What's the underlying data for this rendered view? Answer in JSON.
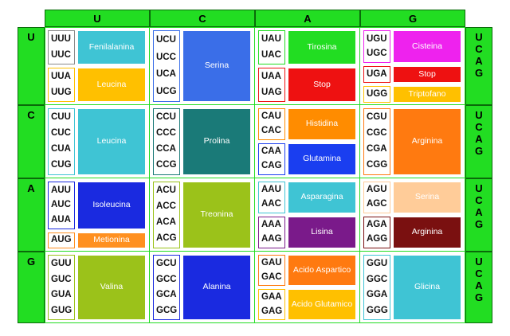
{
  "top_headers": [
    "U",
    "C",
    "A",
    "G"
  ],
  "left_headers": [
    "U",
    "C",
    "A",
    "G"
  ],
  "right_headers": [
    [
      "U",
      "C",
      "A",
      "G"
    ],
    [
      "U",
      "C",
      "A",
      "G"
    ],
    [
      "U",
      "C",
      "A",
      "G"
    ],
    [
      "U",
      "C",
      "A",
      "G"
    ]
  ],
  "cells": [
    [
      {
        "groups": [
          {
            "codons": [
              "UUU",
              "UUC"
            ],
            "aa": "Fenilalanina",
            "color": "#3fc4d4",
            "border": "#8a8a8a"
          },
          {
            "codons": [
              "UUA",
              "UUG"
            ],
            "aa": "Leucina",
            "color": "#ffc000",
            "border": "#ffc000"
          }
        ]
      },
      {
        "groups": [
          {
            "codons": [
              "UCU",
              "UCC",
              "UCA",
              "UCG"
            ],
            "aa": "Serina",
            "color": "#3a6ee8",
            "border": "#3a6ee8"
          }
        ]
      },
      {
        "groups": [
          {
            "codons": [
              "UAU",
              "UAC"
            ],
            "aa": "Tirosina",
            "color": "#22dd22",
            "border": "#22dd22"
          },
          {
            "codons": [
              "UAA",
              "UAG"
            ],
            "aa": "Stop",
            "color": "#ee1111",
            "border": "#ee1111"
          }
        ]
      },
      {
        "groups": [
          {
            "codons": [
              "UGU",
              "UGC"
            ],
            "aa": "Cisteina",
            "color": "#ee22ee",
            "border": "#ee22ee"
          },
          {
            "codons": [
              "UGA"
            ],
            "aa": "Stop",
            "color": "#ee1111",
            "border": "#ee1111"
          },
          {
            "codons": [
              "UGG"
            ],
            "aa": "Triptofano",
            "color": "#ffc000",
            "border": "#ffc000"
          }
        ]
      }
    ],
    [
      {
        "groups": [
          {
            "codons": [
              "CUU",
              "CUC",
              "CUA",
              "CUG"
            ],
            "aa": "Leucina",
            "color": "#3fc4d4",
            "border": "#3fc4d4"
          }
        ]
      },
      {
        "groups": [
          {
            "codons": [
              "CCU",
              "CCC",
              "CCA",
              "CCG"
            ],
            "aa": "Prolina",
            "color": "#1a7a78",
            "border": "#1a7a78"
          }
        ]
      },
      {
        "groups": [
          {
            "codons": [
              "CAU",
              "CAC"
            ],
            "aa": "Histidina",
            "color": "#ff8c00",
            "border": "#ff8c00"
          },
          {
            "codons": [
              "CAA",
              "CAG"
            ],
            "aa": "Glutamina",
            "color": "#1a3ef0",
            "border": "#1a3ef0"
          }
        ]
      },
      {
        "groups": [
          {
            "codons": [
              "CGU",
              "CGC",
              "CGA",
              "CGG"
            ],
            "aa": "Arginina",
            "color": "#ff7a10",
            "border": "#ff7a10"
          }
        ]
      }
    ],
    [
      {
        "groups": [
          {
            "codons": [
              "AUU",
              "AUC",
              "AUA"
            ],
            "aa": "Isoleucina",
            "color": "#1a2ae0",
            "border": "#1a2ae0"
          },
          {
            "codons": [
              "AUG"
            ],
            "aa": "Metionina",
            "color": "#ff9020",
            "border": "#ff9020"
          }
        ]
      },
      {
        "groups": [
          {
            "codons": [
              "ACU",
              "ACC",
              "ACA",
              "ACG"
            ],
            "aa": "Treonina",
            "color": "#9bc21a",
            "border": "#9bc21a"
          }
        ]
      },
      {
        "groups": [
          {
            "codons": [
              "AAU",
              "AAC"
            ],
            "aa": "Asparagina",
            "color": "#3fc4d4",
            "border": "#3fc4d4"
          },
          {
            "codons": [
              "AAA",
              "AAG"
            ],
            "aa": "Lisina",
            "color": "#7a1a8a",
            "border": "#7a1a8a"
          }
        ]
      },
      {
        "groups": [
          {
            "codons": [
              "AGU",
              "AGC"
            ],
            "aa": "Serina",
            "color": "#ffcc99",
            "border": "#ffcc99"
          },
          {
            "codons": [
              "AGA",
              "AGG"
            ],
            "aa": "Arginina",
            "color": "#7a1010",
            "border": "#7a1010"
          }
        ]
      }
    ],
    [
      {
        "groups": [
          {
            "codons": [
              "GUU",
              "GUC",
              "GUA",
              "GUG"
            ],
            "aa": "Valina",
            "color": "#9bc21a",
            "border": "#9bc21a"
          }
        ]
      },
      {
        "groups": [
          {
            "codons": [
              "GCU",
              "GCC",
              "GCA",
              "GCG"
            ],
            "aa": "Alanina",
            "color": "#1a2ae0",
            "border": "#1a2ae0"
          }
        ]
      },
      {
        "groups": [
          {
            "codons": [
              "GAU",
              "GAC"
            ],
            "aa": "Acido Aspartico",
            "color": "#ff7a10",
            "border": "#ff7a10"
          },
          {
            "codons": [
              "GAA",
              "GAG"
            ],
            "aa": "Acido Glutamico",
            "color": "#ffc000",
            "border": "#ffc000"
          }
        ]
      },
      {
        "groups": [
          {
            "codons": [
              "GGU",
              "GGC",
              "GGA",
              "GGG"
            ],
            "aa": "Glicina",
            "color": "#3fc4d4",
            "border": "#3fc4d4"
          }
        ]
      }
    ]
  ]
}
